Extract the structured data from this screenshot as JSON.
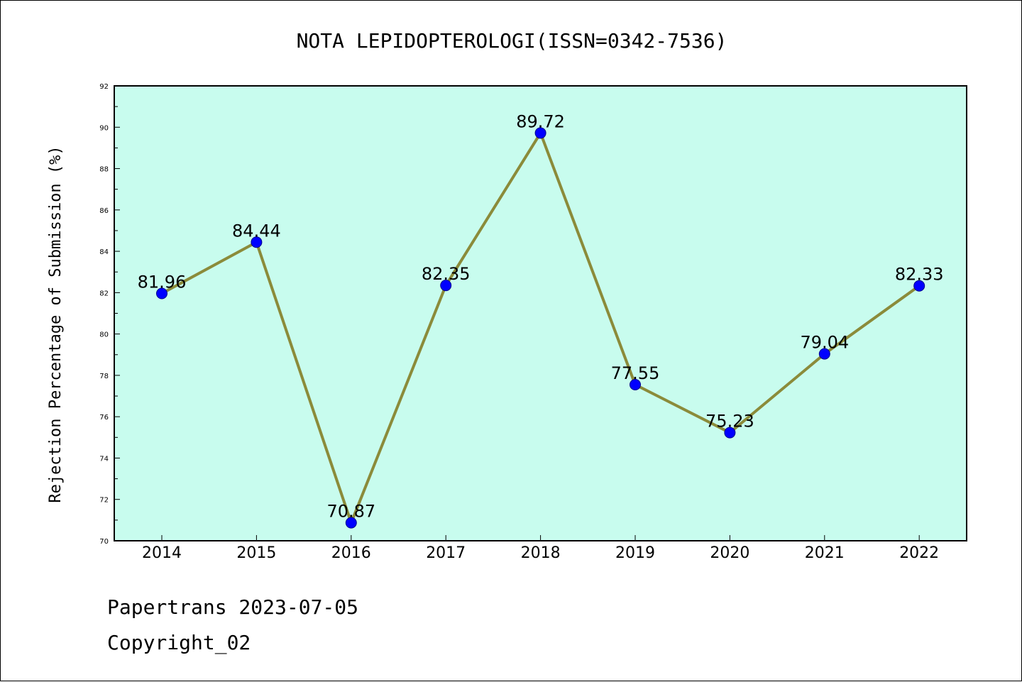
{
  "chart_data": {
    "type": "line",
    "title": "NOTA LEPIDOPTEROLOGI(ISSN=0342-7536)",
    "ylabel": "Rejection Percentage of Submission (%)",
    "xlabel": "",
    "categories": [
      "2014",
      "2015",
      "2016",
      "2017",
      "2018",
      "2019",
      "2020",
      "2021",
      "2022"
    ],
    "values": [
      81.96,
      84.44,
      70.87,
      82.35,
      89.72,
      77.55,
      75.23,
      79.04,
      82.33
    ],
    "data_labels": [
      "81.96",
      "84.44",
      "70.87",
      "82.35",
      "89.72",
      "77.55",
      "75.23",
      "79.04",
      "82.33"
    ],
    "ylim": [
      70,
      92
    ],
    "yticks": [
      "70",
      "72",
      "74",
      "76",
      "78",
      "80",
      "82",
      "84",
      "86",
      "88",
      "90",
      "92"
    ],
    "grid": false,
    "legend": "none",
    "colors": {
      "plot_background": "#c8fcee",
      "line": "#8b8b3a",
      "marker": "#0000ff"
    }
  },
  "footer": {
    "line1": "Papertrans 2023-07-05",
    "line2": "Copyright_02"
  }
}
